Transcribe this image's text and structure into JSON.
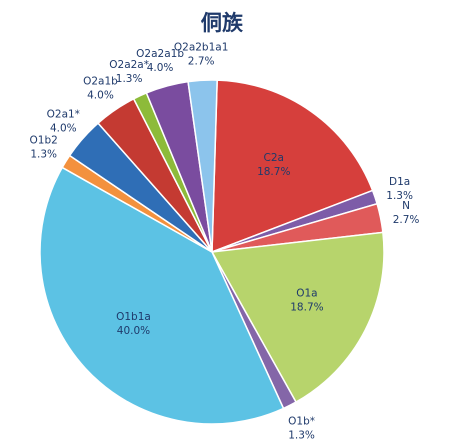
{
  "chart_data": {
    "type": "pie",
    "title": "侗族",
    "categories": [
      "C2a",
      "D1a",
      "N",
      "O1a",
      "O1b*",
      "O1b1a",
      "O1b2",
      "O2a1*",
      "O2a1b",
      "O2a2a*",
      "O2a2a1b",
      "O2a2b1a1"
    ],
    "values": [
      18.7,
      1.3,
      2.7,
      18.7,
      1.3,
      40.0,
      1.3,
      4.0,
      4.0,
      1.3,
      4.0,
      2.7
    ],
    "value_labels": [
      "18.7%",
      "1.3%",
      "2.7%",
      "18.7%",
      "1.3%",
      "40.0%",
      "1.3%",
      "4.0%",
      "4.0%",
      "1.3%",
      "4.0%",
      "2.7%"
    ],
    "colors": [
      "#d63f3c",
      "#7d5ca8",
      "#e05a5a",
      "#b7d46c",
      "#8466a8",
      "#5cc2e4",
      "#f3913e",
      "#2f6eb6",
      "#c43a32",
      "#8dbb3a",
      "#7a4c9f",
      "#8cc4ec"
    ]
  }
}
